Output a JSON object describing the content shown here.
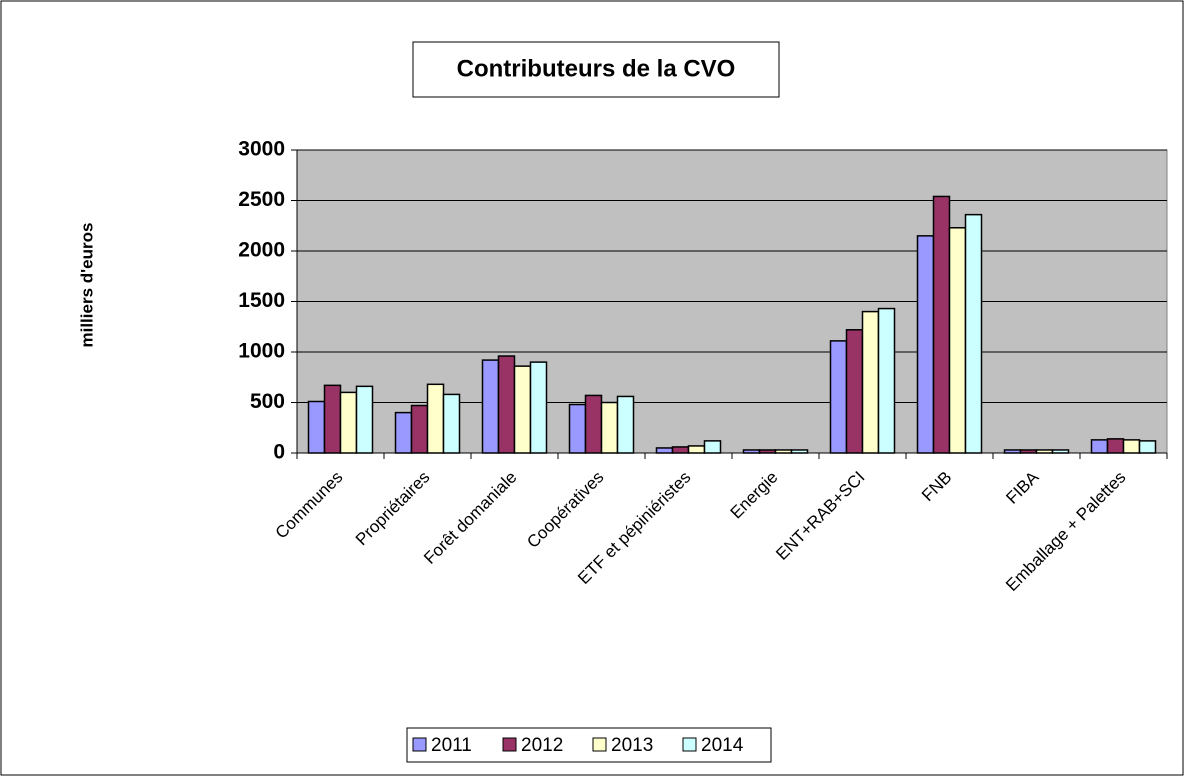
{
  "chart_data": {
    "type": "bar",
    "title": "Contributeurs de la CVO",
    "y_label": "milliers d'euros",
    "categories": [
      "Communes",
      "Propriétaires",
      "Forêt domaniale",
      "Coopératives",
      "ETF et pépiniéristes",
      "Energie",
      "ENT+RAB+SCI",
      "FNB",
      "FIBA",
      "Emballage + Palettes"
    ],
    "series": [
      {
        "name": "2011",
        "color": "#9999ff",
        "values": [
          510,
          400,
          920,
          480,
          50,
          30,
          1110,
          2150,
          30,
          130
        ]
      },
      {
        "name": "2012",
        "color": "#993366",
        "values": [
          670,
          470,
          960,
          570,
          60,
          30,
          1220,
          2540,
          30,
          140
        ]
      },
      {
        "name": "2013",
        "color": "#ffffcc",
        "values": [
          600,
          680,
          860,
          500,
          70,
          30,
          1400,
          2230,
          30,
          130
        ]
      },
      {
        "name": "2014",
        "color": "#ccffff",
        "values": [
          660,
          580,
          900,
          560,
          120,
          30,
          1430,
          2360,
          30,
          120
        ]
      }
    ],
    "ylim": [
      0,
      3000
    ],
    "yticks": [
      0,
      500,
      1000,
      1500,
      2000,
      2500,
      3000
    ],
    "grid": true,
    "legend": "bottom"
  }
}
